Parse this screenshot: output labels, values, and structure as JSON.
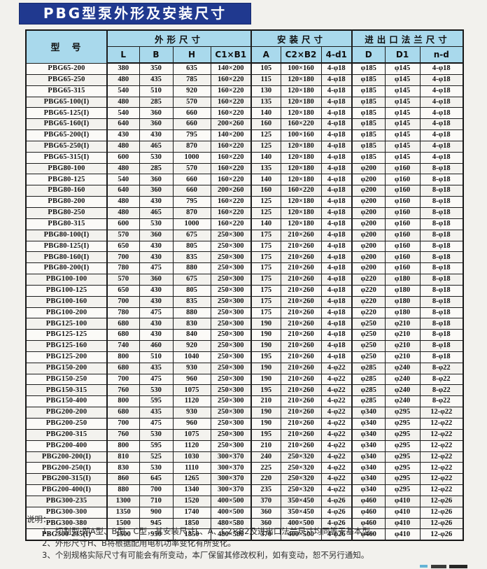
{
  "page_title": "PBG型泵外形及安装尺寸",
  "table": {
    "header": {
      "model_col": "型　号",
      "groups": [
        {
          "label": "外形尺寸",
          "span": 4
        },
        {
          "label": "安装尺寸",
          "span": 3
        },
        {
          "label": "进出口法兰尺寸",
          "span": 3
        }
      ],
      "columns": [
        "L",
        "B",
        "H",
        "C1×B1",
        "A",
        "C2×B2",
        "4-d1",
        "D",
        "D1",
        "n-d"
      ]
    },
    "rows": [
      [
        "PBG65-200",
        "380",
        "350",
        "635",
        "140×200",
        "105",
        "100×160",
        "4-φ18",
        "φ185",
        "φ145",
        "4-φ18"
      ],
      [
        "PBG65-250",
        "480",
        "435",
        "785",
        "160×220",
        "115",
        "120×180",
        "4-φ18",
        "φ185",
        "φ145",
        "4-φ18"
      ],
      [
        "PBG65-315",
        "540",
        "510",
        "920",
        "160×220",
        "130",
        "120×180",
        "4-φ18",
        "φ185",
        "φ145",
        "4-φ18"
      ],
      [
        "PBG65-100(I)",
        "480",
        "285",
        "570",
        "160×220",
        "135",
        "120×180",
        "4-φ18",
        "φ185",
        "φ145",
        "4-φ18"
      ],
      [
        "PBG65-125(I)",
        "540",
        "360",
        "660",
        "160×220",
        "140",
        "120×180",
        "4-φ18",
        "φ185",
        "φ145",
        "4-φ18"
      ],
      [
        "PBG65-160(I)",
        "640",
        "360",
        "660",
        "200×260",
        "160",
        "160×220",
        "4-φ18",
        "φ185",
        "φ145",
        "4-φ18"
      ],
      [
        "PBG65-200(I)",
        "430",
        "430",
        "795",
        "140×200",
        "125",
        "100×160",
        "4-φ18",
        "φ185",
        "φ145",
        "4-φ18"
      ],
      [
        "PBG65-250(I)",
        "480",
        "465",
        "870",
        "160×220",
        "125",
        "120×180",
        "4-φ18",
        "φ185",
        "φ145",
        "4-φ18"
      ],
      [
        "PBG65-315(I)",
        "600",
        "530",
        "1000",
        "160×220",
        "140",
        "120×180",
        "4-φ18",
        "φ185",
        "φ145",
        "4-φ18"
      ],
      [
        "PBG80-100",
        "480",
        "285",
        "570",
        "160×220",
        "135",
        "120×180",
        "4-φ18",
        "φ200",
        "φ160",
        "8-φ18"
      ],
      [
        "PBG80-125",
        "540",
        "360",
        "660",
        "160×220",
        "140",
        "120×180",
        "4-φ18",
        "φ200",
        "φ160",
        "8-φ18"
      ],
      [
        "PBG80-160",
        "640",
        "360",
        "660",
        "200×260",
        "160",
        "160×220",
        "4-φ18",
        "φ200",
        "φ160",
        "8-φ18"
      ],
      [
        "PBG80-200",
        "480",
        "430",
        "795",
        "160×220",
        "125",
        "120×180",
        "4-φ18",
        "φ200",
        "φ160",
        "8-φ18"
      ],
      [
        "PBG80-250",
        "480",
        "465",
        "870",
        "160×220",
        "125",
        "120×180",
        "4-φ18",
        "φ200",
        "φ160",
        "8-φ18"
      ],
      [
        "PBG80-315",
        "600",
        "530",
        "1000",
        "160×220",
        "140",
        "120×180",
        "4-φ18",
        "φ200",
        "φ160",
        "8-φ18"
      ],
      [
        "PBG80-100(I)",
        "570",
        "360",
        "675",
        "250×300",
        "175",
        "210×260",
        "4-φ18",
        "φ200",
        "φ160",
        "8-φ18"
      ],
      [
        "PBG80-125(I)",
        "650",
        "430",
        "805",
        "250×300",
        "175",
        "210×260",
        "4-φ18",
        "φ200",
        "φ160",
        "8-φ18"
      ],
      [
        "PBG80-160(I)",
        "700",
        "430",
        "835",
        "250×300",
        "175",
        "210×260",
        "4-φ18",
        "φ200",
        "φ160",
        "8-φ18"
      ],
      [
        "PBG80-200(I)",
        "780",
        "475",
        "880",
        "250×300",
        "175",
        "210×260",
        "4-φ18",
        "φ200",
        "φ160",
        "8-φ18"
      ],
      [
        "PBG100-100",
        "570",
        "360",
        "675",
        "250×300",
        "175",
        "210×260",
        "4-φ18",
        "φ220",
        "φ180",
        "8-φ18"
      ],
      [
        "PBG100-125",
        "650",
        "430",
        "805",
        "250×300",
        "175",
        "210×260",
        "4-φ18",
        "φ220",
        "φ180",
        "8-φ18"
      ],
      [
        "PBG100-160",
        "700",
        "430",
        "835",
        "250×300",
        "175",
        "210×260",
        "4-φ18",
        "φ220",
        "φ180",
        "8-φ18"
      ],
      [
        "PBG100-200",
        "780",
        "475",
        "880",
        "250×300",
        "175",
        "210×260",
        "4-φ18",
        "φ220",
        "φ180",
        "8-φ18"
      ],
      [
        "PBG125-100",
        "680",
        "430",
        "830",
        "250×300",
        "190",
        "210×260",
        "4-φ18",
        "φ250",
        "φ210",
        "8-φ18"
      ],
      [
        "PBG125-125",
        "680",
        "430",
        "840",
        "250×300",
        "190",
        "210×260",
        "4-φ18",
        "φ250",
        "φ210",
        "8-φ18"
      ],
      [
        "PBG125-160",
        "740",
        "460",
        "920",
        "250×300",
        "190",
        "210×260",
        "4-φ18",
        "φ250",
        "φ210",
        "8-φ18"
      ],
      [
        "PBG125-200",
        "800",
        "510",
        "1040",
        "250×300",
        "195",
        "210×260",
        "4-φ18",
        "φ250",
        "φ210",
        "8-φ18"
      ],
      [
        "PBG150-200",
        "680",
        "435",
        "930",
        "250×300",
        "190",
        "210×260",
        "4-φ22",
        "φ285",
        "φ240",
        "8-φ22"
      ],
      [
        "PBG150-250",
        "700",
        "475",
        "960",
        "250×300",
        "190",
        "210×260",
        "4-φ22",
        "φ285",
        "φ240",
        "8-φ22"
      ],
      [
        "PBG150-315",
        "760",
        "530",
        "1075",
        "250×300",
        "195",
        "210×260",
        "4-φ22",
        "φ285",
        "φ240",
        "8-φ22"
      ],
      [
        "PBG150-400",
        "800",
        "595",
        "1120",
        "250×300",
        "210",
        "210×260",
        "4-φ22",
        "φ285",
        "φ240",
        "8-φ22"
      ],
      [
        "PBG200-200",
        "680",
        "435",
        "930",
        "250×300",
        "190",
        "210×260",
        "4-φ22",
        "φ340",
        "φ295",
        "12-φ22"
      ],
      [
        "PBG200-250",
        "700",
        "475",
        "960",
        "250×300",
        "190",
        "210×260",
        "4-φ22",
        "φ340",
        "φ295",
        "12-φ22"
      ],
      [
        "PBG200-315",
        "760",
        "530",
        "1075",
        "250×300",
        "195",
        "210×260",
        "4-φ22",
        "φ340",
        "φ295",
        "12-φ22"
      ],
      [
        "PBG200-400",
        "800",
        "595",
        "1120",
        "250×300",
        "210",
        "210×260",
        "4-φ22",
        "φ340",
        "φ295",
        "12-φ22"
      ],
      [
        "PBG200-200(I)",
        "810",
        "525",
        "1030",
        "300×370",
        "240",
        "250×320",
        "4-φ22",
        "φ340",
        "φ295",
        "12-φ22"
      ],
      [
        "PBG200-250(I)",
        "830",
        "530",
        "1110",
        "300×370",
        "225",
        "250×320",
        "4-φ22",
        "φ340",
        "φ295",
        "12-φ22"
      ],
      [
        "PBG200-315(I)",
        "860",
        "645",
        "1265",
        "300×370",
        "220",
        "250×320",
        "4-φ22",
        "φ340",
        "φ295",
        "12-φ22"
      ],
      [
        "PBG200-400(I)",
        "880",
        "700",
        "1340",
        "300×370",
        "235",
        "250×320",
        "4-φ22",
        "φ340",
        "φ295",
        "12-φ22"
      ],
      [
        "PBG300-235",
        "1300",
        "710",
        "1520",
        "400×500",
        "370",
        "350×450",
        "4-φ26",
        "φ460",
        "φ410",
        "12-φ26"
      ],
      [
        "PBG300-300",
        "1350",
        "900",
        "1740",
        "400×500",
        "360",
        "350×450",
        "4-φ26",
        "φ460",
        "φ410",
        "12-φ26"
      ],
      [
        "PBG300-380",
        "1500",
        "945",
        "1850",
        "480×580",
        "360",
        "400×500",
        "4-φ26",
        "φ460",
        "φ410",
        "12-φ26"
      ],
      [
        "PBG300-235(I)",
        "1500",
        "950",
        "1850",
        "480×580",
        "370",
        "400×500",
        "4-φ26",
        "φ460",
        "φ410",
        "12-φ26"
      ]
    ]
  },
  "notes": {
    "label": "说明：",
    "items": [
      "1、切割型:即A型、B型、C型，其安装尺寸L、A、C2×B2及进出口法兰尺寸均同等于基本型。",
      "2、外形尺寸H、B将根据配用电机功率变化有所变化。",
      "3、个别规格实际尺寸有可能会有所变动，本厂保留其修改权利，如有变动，恕不另行通知。"
    ]
  },
  "colors": {
    "banner_bg": "#20398f",
    "header_bg": "#a9d9ec",
    "border": "#1c1c1c",
    "page_bg": "#f2f1ed"
  }
}
